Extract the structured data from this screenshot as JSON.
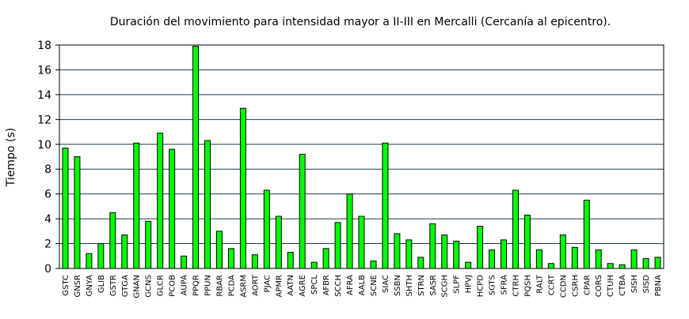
{
  "chart_data": {
    "type": "bar",
    "title": "Duración del movimiento para intensidad mayor a II-III en Mercalli (Cercanía al epicentro).",
    "xlabel": "",
    "ylabel": "Tiempo (s)",
    "ylim": [
      0,
      18
    ],
    "yticks": [
      0,
      2,
      4,
      6,
      8,
      10,
      12,
      14,
      16,
      18
    ],
    "grid": true,
    "legend": "none",
    "colors": {
      "bar": "#00ff00",
      "bar_stroke": "#000000",
      "grid": "#1f3a4a",
      "background": "#ffffff"
    },
    "categories": [
      "GSTC",
      "GNSR",
      "GNYA",
      "GLIB",
      "GSTR",
      "GTGA",
      "GNAN",
      "GCNS",
      "GLCR",
      "PCOB",
      "AUPA",
      "PPQR",
      "PPUN",
      "RBAR",
      "PCDA",
      "ASRM",
      "AORT",
      "PJAC",
      "APMR",
      "AATN",
      "AGRE",
      "SPCL",
      "AFBR",
      "SCCH",
      "AFRA",
      "AALB",
      "SCNE",
      "SIAC",
      "SSBN",
      "SHTH",
      "STRN",
      "SASR",
      "SCGH",
      "SLPF",
      "HPVJ",
      "HCPD",
      "SGTS",
      "SFRA",
      "CTRH",
      "PQSH",
      "RALT",
      "CCRT",
      "CCDN",
      "CSRH",
      "CPAR",
      "CORS",
      "CTUH",
      "CTBA",
      "SISH",
      "SISD",
      "PBNA"
    ],
    "values": [
      9.7,
      9.0,
      1.2,
      2.0,
      4.5,
      2.7,
      10.1,
      3.8,
      10.9,
      9.6,
      1.0,
      17.9,
      10.3,
      3.0,
      1.6,
      12.9,
      1.1,
      6.3,
      4.2,
      1.3,
      9.2,
      0.5,
      1.6,
      3.7,
      6.0,
      4.2,
      0.6,
      10.1,
      2.8,
      2.3,
      0.9,
      3.6,
      2.7,
      2.2,
      0.5,
      3.4,
      1.5,
      2.3,
      6.3,
      4.3,
      1.5,
      0.4,
      2.7,
      1.7,
      5.5,
      1.5,
      0.4,
      0.3,
      1.5,
      0.8,
      0.9
    ]
  }
}
